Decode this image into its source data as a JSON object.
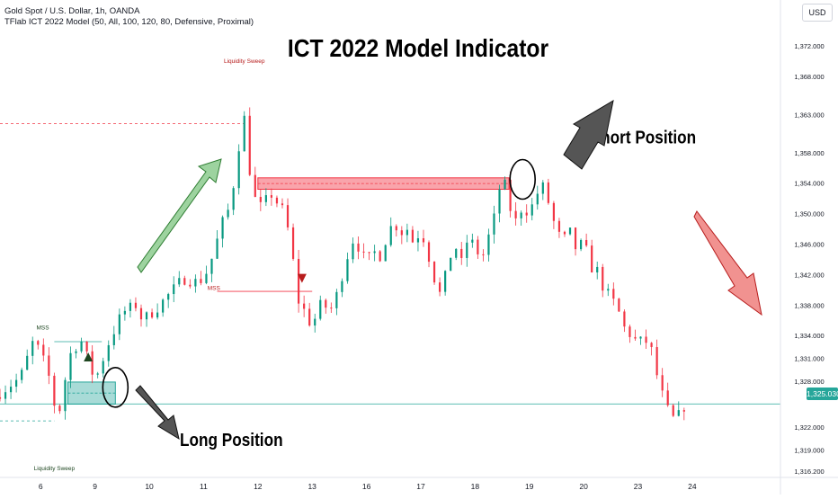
{
  "header": {
    "symbol_line": "Gold Spot / U.S. Dollar, 1h, OANDA",
    "indicator_line": "TFlab ICT 2022 Model (50, All, 100, 120, 80, Defensive, Proximal)"
  },
  "currency_button": "USD",
  "current_price": "1,325.030",
  "chart_data": {
    "type": "candlestick",
    "title": "ICT 2022 Model Indicator",
    "y_axis": {
      "ticks": [
        "1,372.000",
        "1,368.000",
        "1,363.000",
        "1,358.000",
        "1,354.000",
        "1,350.000",
        "1,346.000",
        "1,342.000",
        "1,338.000",
        "1,334.000",
        "1,331.000",
        "1,328.000",
        "1,325.030",
        "1,322.000",
        "1,319.000",
        "1,316.200"
      ],
      "tick_values": [
        1372,
        1368,
        1363,
        1358,
        1354,
        1350,
        1346,
        1342,
        1338,
        1334,
        1331,
        1328,
        1325.03,
        1322,
        1319,
        1316.2
      ],
      "range": [
        1315.5,
        1374.5
      ]
    },
    "x_axis": {
      "ticks": [
        "6",
        "9",
        "10",
        "11",
        "12",
        "13",
        "16",
        "17",
        "18",
        "19",
        "20",
        "23",
        "24"
      ],
      "tick_index": [
        6,
        14,
        22,
        30,
        38,
        46,
        54,
        62,
        70,
        78,
        86,
        94,
        102
      ],
      "bar_range": [
        0,
        115
      ]
    },
    "close_path": [
      [
        0,
        1326.5
      ],
      [
        3,
        1328.5
      ],
      [
        5,
        1333.5
      ],
      [
        7,
        1329.5
      ],
      [
        8,
        1325.0
      ],
      [
        9,
        1324.2
      ],
      [
        10,
        1331.0
      ],
      [
        11,
        1332.5
      ],
      [
        12,
        1333.2
      ],
      [
        13,
        1330.8
      ],
      [
        14,
        1328.0
      ],
      [
        15,
        1330.5
      ],
      [
        16,
        1333.0
      ],
      [
        18,
        1337.0
      ],
      [
        20,
        1338.0
      ],
      [
        21,
        1336.0
      ],
      [
        23,
        1337.5
      ],
      [
        25,
        1339.5
      ],
      [
        27,
        1341.5
      ],
      [
        29,
        1341.0
      ],
      [
        30,
        1341.5
      ],
      [
        31,
        1343.5
      ],
      [
        32,
        1346.5
      ],
      [
        33,
        1349.5
      ],
      [
        34,
        1351.0
      ],
      [
        35,
        1358.0
      ],
      [
        36,
        1362.5
      ],
      [
        37,
        1354.0
      ],
      [
        38,
        1350.5
      ],
      [
        40,
        1352.5
      ],
      [
        42,
        1350.0
      ],
      [
        43,
        1345.0
      ],
      [
        44,
        1338.5
      ],
      [
        45,
        1337.0
      ],
      [
        46,
        1335.0
      ],
      [
        47,
        1338.0
      ],
      [
        49,
        1337.5
      ],
      [
        50,
        1340.5
      ],
      [
        51,
        1344.0
      ],
      [
        52,
        1346.5
      ],
      [
        53,
        1345.5
      ],
      [
        54,
        1343.5
      ],
      [
        55,
        1345.0
      ],
      [
        56,
        1344.5
      ],
      [
        57,
        1347.0
      ],
      [
        58,
        1349.0
      ],
      [
        59,
        1347.5
      ],
      [
        60,
        1348.0
      ],
      [
        61,
        1346.0
      ],
      [
        62,
        1348.0
      ],
      [
        63,
        1345.0
      ],
      [
        64,
        1341.5
      ],
      [
        65,
        1339.0
      ],
      [
        66,
        1343.5
      ],
      [
        67,
        1346.0
      ],
      [
        68,
        1343.5
      ],
      [
        69,
        1347.0
      ],
      [
        70,
        1345.5
      ],
      [
        71,
        1344.0
      ],
      [
        72,
        1347.0
      ],
      [
        73,
        1350.0
      ],
      [
        74,
        1355.5
      ],
      [
        75,
        1351.0
      ],
      [
        76,
        1349.0
      ],
      [
        77,
        1351.0
      ],
      [
        78,
        1350.0
      ],
      [
        79,
        1352.5
      ],
      [
        80,
        1353.5
      ],
      [
        81,
        1351.0
      ],
      [
        82,
        1347.5
      ],
      [
        83,
        1346.5
      ],
      [
        84,
        1347.5
      ],
      [
        85,
        1345.0
      ],
      [
        86,
        1346.5
      ],
      [
        87,
        1343.0
      ],
      [
        88,
        1342.5
      ],
      [
        89,
        1340.0
      ],
      [
        90,
        1339.0
      ],
      [
        91,
        1337.5
      ],
      [
        92,
        1335.0
      ],
      [
        93,
        1334.0
      ],
      [
        94,
        1333.0
      ],
      [
        95,
        1333.5
      ],
      [
        96,
        1332.0
      ],
      [
        97,
        1328.0
      ],
      [
        98,
        1325.0
      ],
      [
        99,
        1323.0
      ],
      [
        100,
        1323.5
      ],
      [
        101,
        1325.0
      ]
    ],
    "reference_lines": [
      {
        "name": "liquidity-sweep-high",
        "y": 1361.8,
        "x": [
          0,
          36
        ],
        "color": "#f23645",
        "dashed": true
      },
      {
        "name": "current-price",
        "y": 1325.03,
        "x": [
          0,
          115
        ],
        "color": "#26a69a",
        "dashed": false
      },
      {
        "name": "liquidity-sweep-low",
        "y": 1322.8,
        "x": [
          0,
          8
        ],
        "color": "#26a69a",
        "dashed": true
      },
      {
        "name": "mss-bearish",
        "y": 1339.8,
        "x": [
          32,
          46
        ],
        "color": "#f23645",
        "dashed": false
      },
      {
        "name": "mss-bullish",
        "y": 1333.2,
        "x": [
          8,
          15
        ],
        "color": "#26a69a",
        "dashed": false
      }
    ],
    "zones": [
      {
        "name": "bearish-entry-zone",
        "x": [
          38,
          75
        ],
        "y": [
          1353.2,
          1354.7
        ],
        "fill": "#f23645",
        "opacity": 0.45
      },
      {
        "name": "bullish-entry-zone",
        "x": [
          10,
          17
        ],
        "y": [
          1325.0,
          1327.9
        ],
        "fill": "#26a69a",
        "opacity": 0.4
      }
    ],
    "markers": [
      {
        "name": "mss-up-triangle",
        "x": 13,
        "y": 1331.2,
        "color": "#1e4620",
        "shape": "up"
      },
      {
        "name": "mss-down-triangle",
        "x": 44.5,
        "y": 1341.5,
        "color": "#b71c1c",
        "shape": "down"
      }
    ],
    "annotations": [
      {
        "name": "label-liquidity-sweep-top",
        "text": "Liquidity Sweep",
        "x": 36,
        "y": 1369.8,
        "color": "#b71c1c"
      },
      {
        "name": "label-mss-bearish",
        "text": "MSS",
        "x": 31.5,
        "y": 1340.0,
        "color": "#b71c1c"
      },
      {
        "name": "label-mss-bullish",
        "text": "MSS",
        "x": 6.3,
        "y": 1334.8,
        "color": "#1e4620"
      },
      {
        "name": "label-liquidity-sweep-bottom",
        "text": "Liquidity Sweep",
        "x": 8,
        "y": 1316.3,
        "color": "#1e4620"
      },
      {
        "name": "label-short-position",
        "text": "Short Position",
        "x": 87,
        "y": 1359.2,
        "color": "#000000"
      },
      {
        "name": "label-long-position",
        "text": "Long Position",
        "x": 26.5,
        "y": 1319.5,
        "color": "#000000"
      }
    ],
    "callouts": [
      {
        "name": "short-entry-circle",
        "x": 77,
        "y": 1354.5
      },
      {
        "name": "long-entry-circle",
        "x": 17,
        "y": 1327.2
      }
    ],
    "legend": "none",
    "grid": false
  }
}
